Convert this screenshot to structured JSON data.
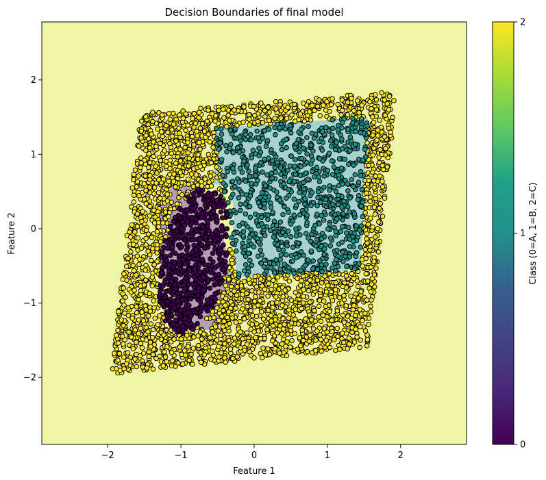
{
  "chart_data": {
    "type": "scatter",
    "title": "Decision Boundaries of final model",
    "xlabel": "Feature 1",
    "ylabel": "Feature 2",
    "xlim": [
      -2.9,
      2.9
    ],
    "ylim": [
      -2.9,
      2.78
    ],
    "xticks": [
      -2,
      -1,
      0,
      1,
      2
    ],
    "yticks": [
      -2,
      -1,
      0,
      1,
      2
    ],
    "grid": false,
    "classes": [
      {
        "class": 0,
        "color": "#440154",
        "region_color": "#b49fb7"
      },
      {
        "class": 1,
        "color": "#21918c",
        "region_color": "#a7d2cf"
      },
      {
        "class": 2,
        "color": "#fde725",
        "region_color": "#eff5a3"
      }
    ],
    "background_region_class": 2,
    "regions": [
      {
        "class": 1,
        "polygon": [
          [
            -0.55,
            1.35
          ],
          [
            1.55,
            1.5
          ],
          [
            1.45,
            -0.55
          ],
          [
            -0.25,
            -0.65
          ],
          [
            -0.3,
            0.55
          ],
          [
            -0.55,
            0.6
          ]
        ]
      },
      {
        "class": 0,
        "ellipse": {
          "cx": -0.82,
          "cy": -0.38,
          "rx": 0.45,
          "ry": 1.0,
          "angle_deg": -12
        }
      }
    ],
    "point_clouds": [
      {
        "class": 2,
        "shape": "parallelogram",
        "corners": [
          [
            -1.95,
            -1.95
          ],
          [
            -1.55,
            1.55
          ],
          [
            1.95,
            1.85
          ],
          [
            1.55,
            -1.6
          ]
        ],
        "approx_count": 2600
      },
      {
        "class": 1,
        "shape": "quad",
        "corners": [
          [
            -0.55,
            1.35
          ],
          [
            1.55,
            1.5
          ],
          [
            1.45,
            -0.55
          ],
          [
            -0.25,
            -0.65
          ]
        ],
        "approx_count": 900
      },
      {
        "class": 0,
        "shape": "ellipse",
        "center": [
          -0.82,
          -0.42
        ],
        "radii": [
          0.45,
          1.0
        ],
        "angle_deg": -12,
        "approx_count": 700
      }
    ],
    "colorbar": {
      "label": "Class (0=A, 1=B, 2=C)",
      "ticks": [
        0,
        1,
        2
      ],
      "tick_labels": [
        "0",
        "1",
        "2"
      ],
      "colormap": "viridis",
      "range": [
        0,
        2
      ]
    }
  }
}
